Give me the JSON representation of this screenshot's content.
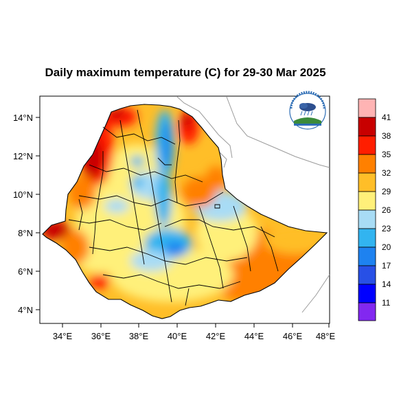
{
  "title": "Daily maximum temperature (C) for 29-30 Mar 2025",
  "axes": {
    "x_ticks": [
      "34°E",
      "36°E",
      "38°E",
      "40°E",
      "42°E",
      "44°E",
      "46°E",
      "48°E"
    ],
    "y_ticks": [
      "14°N",
      "12°N",
      "10°N",
      "8°N",
      "6°N",
      "4°N"
    ],
    "x_values": [
      34,
      36,
      38,
      40,
      42,
      44,
      46,
      48
    ],
    "y_values": [
      14,
      12,
      10,
      8,
      6,
      4
    ],
    "lon_range": [
      33,
      48.3
    ],
    "lat_range": [
      3.2,
      15
    ]
  },
  "legend": {
    "levels": [
      "41",
      "38",
      "35",
      "32",
      "29",
      "26",
      "23",
      "20",
      "17",
      "14",
      "11"
    ],
    "colors": [
      "#ffb4b4",
      "#c80000",
      "#ff1e00",
      "#ff8000",
      "#ffbe28",
      "#fff07a",
      "#a8dcf5",
      "#32b4f0",
      "#1e82f0",
      "#2850e6",
      "#0000ff",
      "#8228f0"
    ]
  },
  "logo": {
    "name": "ethiopian-meteorology-institute-logo",
    "text": "Ethiopian Meteorology Institute"
  },
  "map": {
    "region": "Ethiopia",
    "variable": "Daily maximum temperature",
    "unit": "C"
  }
}
